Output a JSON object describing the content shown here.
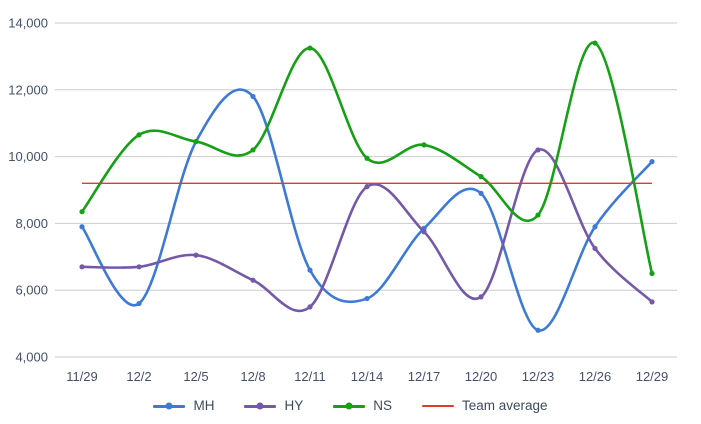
{
  "chart_data": {
    "type": "line",
    "title": "",
    "xlabel": "",
    "ylabel": "",
    "categories": [
      "11/29",
      "12/2",
      "12/5",
      "12/8",
      "12/11",
      "12/14",
      "12/17",
      "12/20",
      "12/23",
      "12/26",
      "12/29"
    ],
    "series": [
      {
        "name": "MH",
        "color": "#3d7ad6",
        "smooth": true,
        "markers": true,
        "values": [
          7900,
          5600,
          10450,
          11800,
          6600,
          5750,
          7850,
          8900,
          4800,
          7900,
          9850
        ]
      },
      {
        "name": "HY",
        "color": "#7459a8",
        "smooth": true,
        "markers": true,
        "values": [
          6700,
          6700,
          7050,
          6300,
          5500,
          9100,
          7750,
          5800,
          10200,
          7250,
          5650
        ]
      },
      {
        "name": "NS",
        "color": "#15a015",
        "smooth": true,
        "markers": true,
        "values": [
          8350,
          10650,
          10450,
          10200,
          13250,
          9950,
          10350,
          9400,
          8250,
          13400,
          6500
        ]
      },
      {
        "name": "Team average",
        "color": "#df3a2a",
        "smooth": false,
        "markers": false,
        "values": [
          9200,
          9200,
          9200,
          9200,
          9200,
          9200,
          9200,
          9200,
          9200,
          9200,
          9200
        ]
      }
    ],
    "ylim": [
      4000,
      14000
    ],
    "ytick_step": 2000,
    "ytick_labels": [
      "4,000",
      "6,000",
      "8,000",
      "10,000",
      "12,000",
      "14,000"
    ],
    "grid": true,
    "grid_color": "#cccccc",
    "axis_label_color": "#44506a",
    "background": "#ffffff",
    "legend_position": "bottom"
  },
  "legend": {
    "items": [
      "MH",
      "HY",
      "NS",
      "Team average"
    ]
  }
}
